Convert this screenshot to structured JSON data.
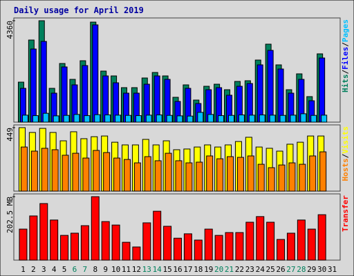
{
  "chart_data": [
    {
      "type": "bar",
      "title": "Daily usage for April 2019",
      "ylim": [
        0,
        4360
      ],
      "yticks": [
        4360
      ],
      "legend_separator": "/",
      "series": [
        {
          "name": "Hits",
          "color": "#00805c",
          "values": [
            1720,
            3530,
            4360,
            1453,
            2521,
            1839,
            2640,
            4300,
            2195,
            1987,
            1483,
            1483,
            1898,
            2135,
            1987,
            1068,
            1602,
            949,
            1542,
            1631,
            1394,
            1750,
            1780,
            2669,
            3352,
            2462,
            1394,
            2076,
            1097,
            2936,
            null
          ]
        },
        {
          "name": "Files",
          "color": "#0000ff",
          "values": [
            1453,
            3144,
            3470,
            1246,
            2373,
            1602,
            2432,
            4182,
            1987,
            1691,
            1246,
            1246,
            1631,
            1987,
            1839,
            890,
            1453,
            801,
            1394,
            1483,
            1157,
            1542,
            1661,
            2462,
            3085,
            2284,
            1246,
            1839,
            919,
            2758,
            null
          ]
        },
        {
          "name": "Pages",
          "color": "#00c0ff",
          "values": [
            300,
            280,
            380,
            270,
            290,
            330,
            280,
            320,
            310,
            300,
            290,
            280,
            300,
            310,
            290,
            270,
            260,
            420,
            330,
            280,
            290,
            310,
            300,
            310,
            300,
            290,
            300,
            360,
            290,
            300,
            null
          ]
        }
      ]
    },
    {
      "type": "bar",
      "ylim": [
        0,
        449
      ],
      "yticks": [
        449
      ],
      "legend_separator": "/",
      "legend_reversed": true,
      "series": [
        {
          "name": "Visits",
          "color": "#ffff00",
          "values": [
            449,
            415,
            444,
            415,
            356,
            420,
            371,
            385,
            390,
            346,
            327,
            327,
            366,
            327,
            356,
            293,
            298,
            312,
            327,
            312,
            327,
            351,
            381,
            312,
            303,
            283,
            332,
            346,
            390,
            390,
            null
          ]
        },
        {
          "name": "Hosts",
          "color": "#ff8000",
          "values": [
            312,
            283,
            303,
            293,
            254,
            268,
            234,
            288,
            273,
            234,
            224,
            200,
            244,
            215,
            268,
            215,
            200,
            205,
            249,
            229,
            244,
            239,
            249,
            190,
            166,
            185,
            200,
            190,
            249,
            278,
            null
          ]
        }
      ]
    },
    {
      "type": "bar",
      "ylim": [
        0,
        202.5
      ],
      "yticks": [
        {
          "value": 202.5,
          "label": "202.5 MB"
        }
      ],
      "categories": [
        "1",
        "2",
        "3",
        "4",
        "5",
        "6",
        "7",
        "8",
        "9",
        "10",
        "11",
        "12",
        "13",
        "14",
        "15",
        "16",
        "17",
        "18",
        "19",
        "20",
        "21",
        "22",
        "23",
        "24",
        "25",
        "26",
        "27",
        "28",
        "29",
        "30",
        "31"
      ],
      "category_colors": [
        "#000000",
        "#000000",
        "#000000",
        "#000000",
        "#000000",
        "#00805c",
        "#00805c",
        "#000000",
        "#000000",
        "#000000",
        "#000000",
        "#000000",
        "#00805c",
        "#00805c",
        "#000000",
        "#000000",
        "#000000",
        "#000000",
        "#000000",
        "#00805c",
        "#00805c",
        "#000000",
        "#000000",
        "#000000",
        "#000000",
        "#000000",
        "#00805c",
        "#00805c",
        "#000000",
        "#000000",
        "#000000"
      ],
      "series": [
        {
          "name": "Transfer",
          "color": "#ff0000",
          "values": [
            99,
            141,
            180.5,
            128,
            79,
            86,
            110,
            202.5,
            123,
            112,
            57,
            42,
            119,
            156,
            108,
            70,
            84,
            64,
            99,
            79,
            88,
            88,
            121,
            139,
            121,
            66,
            86,
            128,
            99,
            145,
            null
          ]
        }
      ]
    }
  ]
}
